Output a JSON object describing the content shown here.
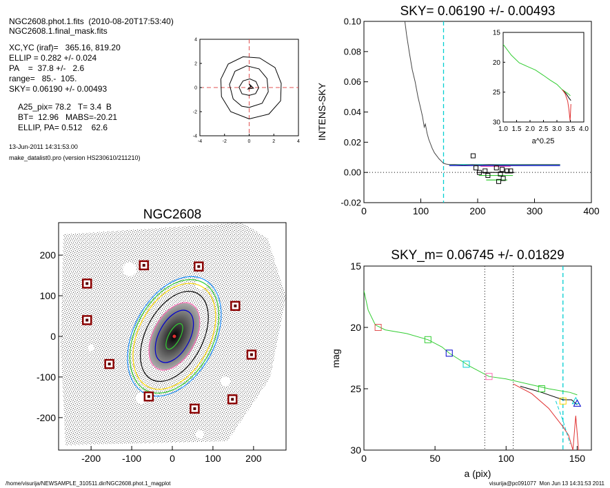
{
  "header": {
    "file_line": "NGC2608.phot.1.fits  (2010-08-20T17:53:40)",
    "mask_line": "NGC2608.1.final_mask.fits",
    "params": [
      "XC,YC (iraf)=   365.16, 819.20",
      "ELLIP = 0.282 +/- 0.024",
      "PA    =  37.8 +/-   2.6",
      "range=   85.-  105.",
      "SKY= 0.06190 +/- 0.00493"
    ],
    "results": [
      "A25_pix= 78.2   T= 3.4  B",
      "BT=  12.96   MABS=-20.21",
      "ELLIP, PA= 0.512    62.6"
    ],
    "date": "13-Jun-2011 14:31:53.00",
    "program": "make_datalist0.pro (version HS230610/211210)"
  },
  "footer": {
    "path": "/home/visurija/NEWSAMPLE_310511.dir/NGC2608.phot.1_magplot",
    "user": "visurija@pc091077  Mon Jun 13 14:31:53 2011"
  },
  "chart_data": [
    {
      "id": "center",
      "type": "line",
      "xlim": [
        -4,
        4
      ],
      "ylim": [
        -4,
        4
      ],
      "xticks": [
        "-4",
        "-2",
        "0",
        "2",
        "4"
      ],
      "yticks": [
        "-4",
        "-2",
        "0",
        "2",
        "4"
      ],
      "contours": [
        [
          [
            0.0,
            -0.65
          ],
          [
            0.52,
            -0.5
          ],
          [
            0.78,
            -0.02
          ],
          [
            0.55,
            0.5
          ],
          [
            0.05,
            0.72
          ],
          [
            -0.5,
            0.55
          ],
          [
            -0.82,
            0.02
          ],
          [
            -0.58,
            -0.52
          ],
          [
            0.0,
            -0.65
          ]
        ],
        [
          [
            0.0,
            -1.65
          ],
          [
            1.05,
            -1.3
          ],
          [
            1.55,
            -0.35
          ],
          [
            1.45,
            0.75
          ],
          [
            0.8,
            1.55
          ],
          [
            -0.2,
            1.8
          ],
          [
            -1.15,
            1.35
          ],
          [
            -1.6,
            0.25
          ],
          [
            -1.3,
            -0.95
          ],
          [
            -0.6,
            -1.55
          ],
          [
            0.0,
            -1.65
          ]
        ],
        [
          [
            0.0,
            -2.6
          ],
          [
            1.6,
            -2.2
          ],
          [
            2.55,
            -1.1
          ],
          [
            2.6,
            0.35
          ],
          [
            2.1,
            1.65
          ],
          [
            0.85,
            2.45
          ],
          [
            -0.5,
            2.55
          ],
          [
            -1.7,
            1.95
          ],
          [
            -2.3,
            0.7
          ],
          [
            -2.25,
            -0.75
          ],
          [
            -1.5,
            -2.0
          ],
          [
            0.0,
            -2.6
          ]
        ]
      ],
      "center_marks": [
        [
          0.2,
          0.15
        ],
        [
          -0.1,
          -0.12
        ],
        [
          0.35,
          -0.05
        ],
        [
          0.0,
          0.3
        ],
        [
          0.15,
          0.0
        ]
      ]
    },
    {
      "id": "sky",
      "type": "line",
      "title": "SKY= 0.06190 +/- 0.00493",
      "ylabel": "INTENS-SKY",
      "xlim": [
        0,
        400
      ],
      "ylim": [
        -0.02,
        0.1
      ],
      "xticks": [
        "0",
        "100",
        "200",
        "300",
        "400"
      ],
      "yticks": [
        "-0.02",
        "0.00",
        "0.02",
        "0.04",
        "0.06",
        "0.08",
        "0.10"
      ],
      "sky_line": 140,
      "profile": [
        [
          72,
          0.1
        ],
        [
          75,
          0.091
        ],
        [
          80,
          0.079
        ],
        [
          85,
          0.068
        ],
        [
          90,
          0.06
        ],
        [
          95,
          0.05
        ],
        [
          100,
          0.042
        ],
        [
          103,
          0.037
        ],
        [
          106,
          0.03
        ],
        [
          108,
          0.032
        ],
        [
          111,
          0.026
        ],
        [
          114,
          0.022
        ],
        [
          117,
          0.019
        ],
        [
          120,
          0.016
        ],
        [
          124,
          0.013
        ],
        [
          128,
          0.011
        ],
        [
          132,
          0.009
        ],
        [
          136,
          0.0075
        ],
        [
          140,
          0.006
        ],
        [
          145,
          0.0055
        ],
        [
          150,
          0.0052
        ],
        [
          160,
          0.0053
        ],
        [
          175,
          0.0048
        ],
        [
          190,
          0.0052
        ],
        [
          205,
          0.005
        ],
        [
          220,
          0.0053
        ],
        [
          240,
          0.005
        ],
        [
          265,
          0.0051
        ],
        [
          300,
          0.0052
        ],
        [
          345,
          0.0052
        ]
      ],
      "squares": [
        [
          192,
          0.011
        ],
        [
          197,
          0.003
        ],
        [
          203,
          0.0
        ],
        [
          213,
          0.001
        ],
        [
          218,
          -0.002
        ],
        [
          233,
          0.003
        ],
        [
          237,
          -0.006
        ],
        [
          240,
          -0.001
        ],
        [
          243,
          0.002
        ],
        [
          245,
          -0.004
        ],
        [
          252,
          0.001
        ],
        [
          258,
          0.001
        ]
      ],
      "hlines": [
        {
          "color": "#32cd32",
          "y": -0.002,
          "x": [
            202,
            262
          ]
        },
        {
          "color": "#32cd32",
          "y": -0.005,
          "x": [
            215,
            252
          ]
        },
        {
          "color": "#ff69b4",
          "y": 0.004,
          "x": [
            205,
            258
          ]
        },
        {
          "color": "#ff69b4",
          "y": 0.005,
          "x": [
            210,
            250
          ]
        },
        {
          "color": "#000000",
          "y": 0.0,
          "x": [
            198,
            265
          ]
        },
        {
          "color": "#0000cd",
          "y": 0.0045,
          "x": [
            150,
            345
          ]
        },
        {
          "color": "#00ced1",
          "y": 0.0052,
          "x": [
            150,
            345
          ]
        }
      ],
      "inset": {
        "xlabel": "a^0.25",
        "xlim": [
          1.0,
          4.0
        ],
        "ylim": [
          15,
          30
        ],
        "xticks": [
          "1.0",
          "1.5",
          "2.0",
          "2.5",
          "3.0",
          "3.5",
          "4.0"
        ],
        "yticks": [
          "15",
          "20",
          "25",
          "30"
        ],
        "green": [
          [
            1.0,
            17.0
          ],
          [
            1.3,
            18.8
          ],
          [
            1.6,
            20.1
          ],
          [
            1.9,
            20.7
          ],
          [
            2.2,
            21.3
          ],
          [
            2.5,
            22.2
          ],
          [
            2.75,
            23.0
          ],
          [
            3.0,
            23.7
          ],
          [
            3.2,
            24.6
          ],
          [
            3.4,
            25.2
          ],
          [
            3.5,
            25.6
          ]
        ],
        "black": [
          [
            3.2,
            24.6
          ],
          [
            3.35,
            25.3
          ],
          [
            3.45,
            26.0
          ],
          [
            3.52,
            26.4
          ]
        ],
        "red": [
          [
            3.2,
            24.6
          ],
          [
            3.3,
            25.2
          ],
          [
            3.4,
            26.5
          ],
          [
            3.45,
            28.0
          ],
          [
            3.49,
            29.8
          ],
          [
            3.52,
            27.0
          ]
        ]
      }
    },
    {
      "id": "image",
      "type": "scatter",
      "title": "NGC2608",
      "xlim": [
        -280,
        280
      ],
      "ylim": [
        -280,
        280
      ],
      "xticks": [
        "-200",
        "-100",
        "0",
        "100",
        "200"
      ],
      "yticks": [
        "-200",
        "-100",
        "0",
        "100",
        "200"
      ],
      "stars": [
        [
          -70,
          175
        ],
        [
          65,
          172
        ],
        [
          -210,
          130
        ],
        [
          155,
          75
        ],
        [
          -210,
          40
        ],
        [
          195,
          -45
        ],
        [
          -155,
          -68
        ],
        [
          -58,
          -148
        ],
        [
          148,
          -155
        ],
        [
          55,
          -178
        ]
      ],
      "ellipses": [
        {
          "a": 120,
          "b": 70,
          "pa": 62,
          "color": "#000000"
        },
        {
          "a": 150,
          "b": 95,
          "pa": 62,
          "color": "#32cd32"
        },
        {
          "a": 158,
          "b": 100,
          "pa": 62,
          "color": "#1e90ff"
        },
        {
          "a": 140,
          "b": 88,
          "pa": 62,
          "color": "#ffd700"
        },
        {
          "a": 90,
          "b": 52,
          "pa": 62,
          "color": "#ff69b4"
        },
        {
          "a": 70,
          "b": 38,
          "pa": 62,
          "color": "#0000cd"
        },
        {
          "a": 35,
          "b": 14,
          "pa": 62,
          "color": "#32cd32"
        }
      ]
    },
    {
      "id": "mag",
      "type": "line",
      "title": "SKY_m=  0.06745 +/- 0.01829",
      "xlabel": "a (pix)",
      "ylabel": "mag",
      "xlim": [
        0,
        160
      ],
      "ylim": [
        30,
        15
      ],
      "xticks": [
        "0",
        "50",
        "100",
        "150"
      ],
      "yticks": [
        "15",
        "20",
        "25",
        "30"
      ],
      "vlines_dotted": [
        85,
        105
      ],
      "vline_dashed": 140,
      "green": [
        [
          0,
          17.0
        ],
        [
          3,
          18.6
        ],
        [
          8,
          19.8
        ],
        [
          15,
          20.2
        ],
        [
          30,
          20.5
        ],
        [
          45,
          21.0
        ],
        [
          55,
          21.6
        ],
        [
          60,
          22.1
        ],
        [
          75,
          23.2
        ],
        [
          88,
          24.0
        ],
        [
          100,
          24.2
        ],
        [
          115,
          24.6
        ],
        [
          130,
          25.0
        ],
        [
          140,
          25.2
        ],
        [
          145,
          25.3
        ],
        [
          150,
          25.5
        ]
      ],
      "black": [
        [
          110,
          24.8
        ],
        [
          125,
          25.3
        ],
        [
          140,
          25.9
        ],
        [
          146,
          25.9
        ],
        [
          150,
          26.3
        ]
      ],
      "red": [
        [
          105,
          24.6
        ],
        [
          118,
          25.4
        ],
        [
          130,
          26.6
        ],
        [
          140,
          28.1
        ],
        [
          144,
          28.8
        ],
        [
          147,
          30.0
        ],
        [
          149,
          27.2
        ],
        [
          151,
          30.0
        ]
      ],
      "cyan": [
        [
          135,
          26.0
        ],
        [
          140,
          27.6
        ],
        [
          145,
          29.5
        ]
      ],
      "markers": [
        {
          "x": 10,
          "y": 20.0,
          "color": "#e05050",
          "shape": "square"
        },
        {
          "x": 45,
          "y": 21.0,
          "color": "#32cd32",
          "shape": "square"
        },
        {
          "x": 60,
          "y": 22.1,
          "color": "#0000cd",
          "shape": "square"
        },
        {
          "x": 72,
          "y": 23.0,
          "color": "#00ced1",
          "shape": "square"
        },
        {
          "x": 88,
          "y": 24.0,
          "color": "#ff69b4",
          "shape": "square"
        },
        {
          "x": 125,
          "y": 25.0,
          "color": "#32cd32",
          "shape": "square"
        },
        {
          "x": 140,
          "y": 26.0,
          "color": "#ffd700",
          "shape": "square"
        },
        {
          "x": 149,
          "y": 26.0,
          "color": "#00ced1",
          "shape": "triangle"
        },
        {
          "x": 150,
          "y": 26.2,
          "color": "#0000cd",
          "shape": "triangle"
        }
      ]
    }
  ]
}
